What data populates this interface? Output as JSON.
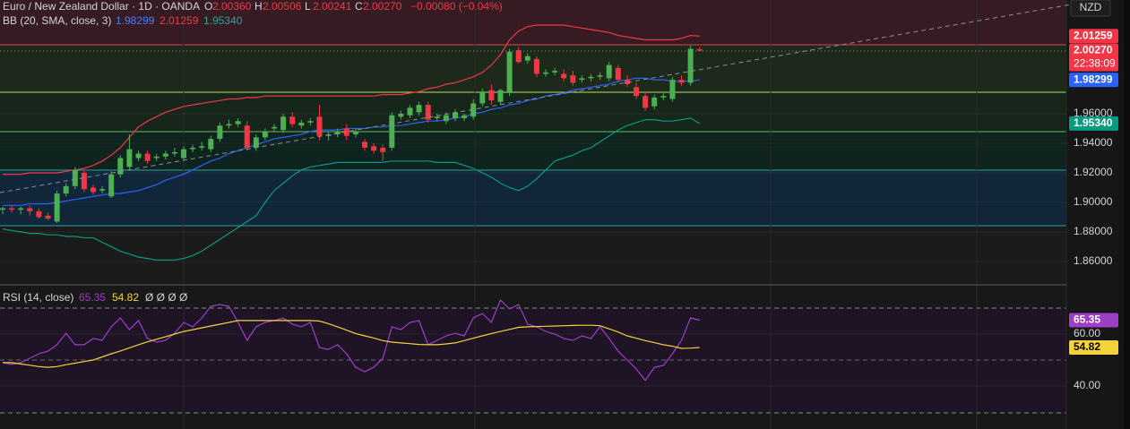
{
  "header": {
    "symbol": "Euro / New Zealand Dollar · 1D · OANDA",
    "ohlc": [
      {
        "key": "O",
        "value": "2.00360"
      },
      {
        "key": "H",
        "value": "2.00506"
      },
      {
        "key": "L",
        "value": "2.00241"
      },
      {
        "key": "C",
        "value": "2.00270"
      }
    ],
    "change": "−0.00080 (−0.04%)"
  },
  "bb_legend": {
    "name": "BB (20, SMA, close, 3)",
    "values": [
      "1.98299",
      "2.01259",
      "1.95340"
    ]
  },
  "rsi_legend": {
    "name": "RSI (14, close)",
    "values": [
      "65.35",
      "54.82"
    ],
    "extra": "Ø Ø Ø Ø"
  },
  "currency": "NZD",
  "chart_data": [
    {
      "type": "candlestick",
      "up_color": "#4caf50",
      "down_color": "#f23645",
      "open": [
        1.895,
        1.896,
        1.895,
        1.896,
        1.894,
        1.891,
        1.887,
        1.906,
        1.911,
        1.92,
        1.91,
        1.908,
        1.904,
        1.919,
        1.924,
        1.93,
        1.933,
        1.93,
        1.931,
        1.933,
        1.93,
        1.936,
        1.937,
        1.936,
        1.943,
        1.952,
        1.953,
        1.952,
        1.937,
        1.944,
        1.95,
        1.949,
        1.958,
        1.952,
        1.954,
        1.958,
        1.945,
        1.946,
        1.95,
        1.946,
        1.941,
        1.938,
        1.937,
        1.937,
        1.958,
        1.959,
        1.961,
        1.966,
        1.957,
        1.955,
        1.957,
        1.957,
        1.958,
        1.967,
        1.976,
        1.968,
        1.974,
        2.003,
        1.996,
        1.997,
        1.987,
        1.988,
        1.987,
        1.986,
        1.983,
        1.984,
        1.985,
        1.984,
        1.991,
        1.983,
        1.978,
        1.972,
        1.965,
        1.971,
        1.97,
        1.983,
        1.981,
        2.0036
      ],
      "high": [
        1.897,
        1.898,
        1.897,
        1.898,
        1.896,
        1.893,
        1.908,
        1.913,
        1.924,
        1.922,
        1.912,
        1.911,
        1.921,
        1.932,
        1.946,
        1.935,
        1.935,
        1.933,
        1.935,
        1.937,
        1.938,
        1.939,
        1.941,
        1.945,
        1.954,
        1.956,
        1.957,
        1.955,
        1.946,
        1.95,
        1.953,
        1.96,
        1.961,
        1.956,
        1.957,
        1.966,
        1.948,
        1.95,
        1.953,
        1.95,
        1.943,
        1.94,
        1.939,
        1.961,
        1.962,
        1.966,
        1.968,
        1.968,
        1.96,
        1.961,
        1.963,
        1.96,
        1.97,
        1.977,
        1.98,
        1.977,
        2.004,
        2.005,
        2.001,
        1.999,
        1.99,
        1.991,
        1.99,
        1.989,
        1.986,
        1.987,
        1.988,
        1.995,
        1.993,
        1.986,
        1.981,
        1.975,
        1.973,
        1.974,
        1.985,
        1.986,
        2.006,
        2.00506
      ],
      "low": [
        1.892,
        1.893,
        1.892,
        1.891,
        1.889,
        1.888,
        1.886,
        1.904,
        1.909,
        1.907,
        1.905,
        1.906,
        1.903,
        1.917,
        1.922,
        1.928,
        1.926,
        1.928,
        1.929,
        1.931,
        1.928,
        1.934,
        1.935,
        1.934,
        1.941,
        1.95,
        1.951,
        1.935,
        1.935,
        1.942,
        1.948,
        1.947,
        1.951,
        1.95,
        1.952,
        1.942,
        1.942,
        1.944,
        1.942,
        1.944,
        1.935,
        1.933,
        1.928,
        1.935,
        1.956,
        1.957,
        1.959,
        1.954,
        1.955,
        1.953,
        1.955,
        1.955,
        1.956,
        1.965,
        1.966,
        1.966,
        1.972,
        1.994,
        1.994,
        1.985,
        1.985,
        1.986,
        1.982,
        1.979,
        1.981,
        1.982,
        1.983,
        1.982,
        1.981,
        1.978,
        1.97,
        1.962,
        1.963,
        1.969,
        1.968,
        1.979,
        1.979,
        2.00241
      ],
      "close": [
        1.896,
        1.895,
        1.896,
        1.894,
        1.89,
        1.889,
        1.906,
        1.911,
        1.922,
        1.909,
        1.907,
        1.909,
        1.919,
        1.93,
        1.936,
        1.933,
        1.928,
        1.931,
        1.933,
        1.934,
        1.936,
        1.937,
        1.938,
        1.943,
        1.952,
        1.953,
        1.955,
        1.937,
        1.944,
        1.948,
        1.951,
        1.958,
        1.953,
        1.954,
        1.955,
        1.945,
        1.946,
        1.948,
        1.945,
        1.948,
        1.937,
        1.935,
        1.934,
        1.959,
        1.96,
        1.964,
        1.966,
        1.956,
        1.958,
        1.959,
        1.961,
        1.959,
        1.967,
        1.975,
        1.969,
        1.976,
        2.002,
        1.995,
        1.999,
        1.987,
        1.988,
        1.989,
        1.984,
        1.981,
        1.984,
        1.985,
        1.986,
        1.993,
        1.983,
        1.98,
        1.972,
        1.964,
        1.971,
        1.972,
        1.983,
        1.981,
        2.004,
        2.0027
      ],
      "series": [
        {
          "name": "Upper",
          "color": "#f23645",
          "values": [
            1.919,
            1.919,
            1.919,
            1.92,
            1.92,
            1.92,
            1.92,
            1.921,
            1.922,
            1.923,
            1.925,
            1.928,
            1.932,
            1.937,
            1.944,
            1.951,
            1.955,
            1.958,
            1.961,
            1.963,
            1.965,
            1.966,
            1.967,
            1.968,
            1.969,
            1.97,
            1.97,
            1.971,
            1.971,
            1.972,
            1.972,
            1.972,
            1.972,
            1.972,
            1.972,
            1.972,
            1.972,
            1.972,
            1.972,
            1.972,
            1.972,
            1.972,
            1.973,
            1.973,
            1.973,
            1.974,
            1.975,
            1.977,
            1.978,
            1.98,
            1.981,
            1.983,
            1.985,
            1.988,
            1.993,
            2.0,
            2.01,
            2.016,
            2.019,
            2.02,
            2.02,
            2.02,
            2.02,
            2.019,
            2.018,
            2.017,
            2.016,
            2.015,
            2.013,
            2.012,
            2.011,
            2.01,
            2.01,
            2.01,
            2.01,
            2.011,
            2.013,
            2.0126
          ]
        },
        {
          "name": "Basis",
          "color": "#2962ff",
          "values": [
            1.898,
            1.898,
            1.898,
            1.899,
            1.899,
            1.899,
            1.9,
            1.901,
            1.902,
            1.903,
            1.904,
            1.905,
            1.906,
            1.906,
            1.907,
            1.908,
            1.91,
            1.912,
            1.915,
            1.917,
            1.919,
            1.922,
            1.925,
            1.928,
            1.93,
            1.933,
            1.935,
            1.937,
            1.939,
            1.941,
            1.943,
            1.944,
            1.945,
            1.946,
            1.948,
            1.949,
            1.949,
            1.949,
            1.95,
            1.95,
            1.95,
            1.951,
            1.951,
            1.952,
            1.952,
            1.953,
            1.954,
            1.955,
            1.955,
            1.956,
            1.957,
            1.958,
            1.96,
            1.961,
            1.963,
            1.964,
            1.966,
            1.967,
            1.969,
            1.97,
            1.972,
            1.973,
            1.974,
            1.976,
            1.977,
            1.978,
            1.979,
            1.98,
            1.982,
            1.983,
            1.984,
            1.984,
            1.983,
            1.983,
            1.982,
            1.982,
            1.982,
            1.983
          ]
        },
        {
          "name": "Lower",
          "color": "#089981",
          "values": [
            1.882,
            1.881,
            1.88,
            1.879,
            1.879,
            1.878,
            1.878,
            1.877,
            1.877,
            1.876,
            1.876,
            1.873,
            1.87,
            1.867,
            1.865,
            1.863,
            1.862,
            1.861,
            1.861,
            1.861,
            1.862,
            1.864,
            1.867,
            1.871,
            1.875,
            1.879,
            1.883,
            1.887,
            1.891,
            1.9,
            1.908,
            1.913,
            1.918,
            1.922,
            1.924,
            1.925,
            1.926,
            1.927,
            1.927,
            1.927,
            1.927,
            1.927,
            1.927,
            1.928,
            1.928,
            1.928,
            1.928,
            1.928,
            1.927,
            1.927,
            1.927,
            1.925,
            1.923,
            1.92,
            1.917,
            1.913,
            1.91,
            1.908,
            1.911,
            1.916,
            1.922,
            1.928,
            1.93,
            1.932,
            1.935,
            1.937,
            1.941,
            1.945,
            1.949,
            1.952,
            1.954,
            1.956,
            1.956,
            1.955,
            1.955,
            1.956,
            1.957,
            1.9534
          ]
        }
      ],
      "ylim": [
        1.8448,
        2.037
      ],
      "yticks": [
        {
          "value": 1.86,
          "label": "1.86000"
        },
        {
          "value": 1.88,
          "label": "1.88000"
        },
        {
          "value": 1.9,
          "label": "1.90000"
        },
        {
          "value": 1.92,
          "label": "1.92000"
        },
        {
          "value": 1.94,
          "label": "1.94000"
        },
        {
          "value": 1.96,
          "label": "1.96000"
        }
      ],
      "price_labels": [
        {
          "value": 2.01259,
          "label": "2.01259",
          "color": "#f23645"
        },
        {
          "value": 2.0027,
          "label": "2.00270",
          "sub": "22:38:09",
          "color": "#f23645"
        },
        {
          "value": 1.98299,
          "label": "1.98299",
          "color": "#2962ff"
        },
        {
          "value": 1.9534,
          "label": "1.95340",
          "color": "#089981"
        }
      ]
    },
    {
      "type": "line",
      "series": [
        {
          "name": "RSI",
          "color": "#9c3fc4",
          "values": [
            49.0,
            48.3,
            49.0,
            50.7,
            52.4,
            53.4,
            55.9,
            60.3,
            55.9,
            55.9,
            58.3,
            57.6,
            62.8,
            66.2,
            61.7,
            65.2,
            58.3,
            56.9,
            57.6,
            60.3,
            64.5,
            62.8,
            66.2,
            70.7,
            71.4,
            70.7,
            64.5,
            57.6,
            62.8,
            64.5,
            65.2,
            66.2,
            63.8,
            62.8,
            64.5,
            54.8,
            54.1,
            55.9,
            52.4,
            47.2,
            45.5,
            47.2,
            50.7,
            62.8,
            61.7,
            64.5,
            65.2,
            55.9,
            57.6,
            59.3,
            60.3,
            59.3,
            66.2,
            67.9,
            64.5,
            73.1,
            69.7,
            71.4,
            63.8,
            62.8,
            61.0,
            60.0,
            58.3,
            57.6,
            59.3,
            58.3,
            62.8,
            58.3,
            53.4,
            50.0,
            46.6,
            42.1,
            47.2,
            47.9,
            52.4,
            57.6,
            66.2,
            65.35
          ]
        },
        {
          "name": "RSI-based MA",
          "color": "#f5d33a",
          "values": [
            49.0,
            49.0,
            48.5,
            48.0,
            47.5,
            47.2,
            47.5,
            48.2,
            48.8,
            49.4,
            50.0,
            51.2,
            52.4,
            53.5,
            54.7,
            55.9,
            57.0,
            58.0,
            59.0,
            60.0,
            61.0,
            61.7,
            62.4,
            63.1,
            63.8,
            64.5,
            65.2,
            65.2,
            65.2,
            65.2,
            65.2,
            65.2,
            65.2,
            65.2,
            65.2,
            65.0,
            64.0,
            62.8,
            61.5,
            60.2,
            59.3,
            58.5,
            57.5,
            56.9,
            56.6,
            56.3,
            56.0,
            55.9,
            55.9,
            56.2,
            56.6,
            57.5,
            58.4,
            59.3,
            60.2,
            61.0,
            61.8,
            62.6,
            62.8,
            62.9,
            63.0,
            63.1,
            63.2,
            63.3,
            63.4,
            63.4,
            63.2,
            62.0,
            60.8,
            59.3,
            58.4,
            57.5,
            56.7,
            55.9,
            55.3,
            54.5,
            54.6,
            54.82
          ]
        }
      ],
      "ylim": [
        23.45,
        78.28
      ],
      "yticks": [
        {
          "value": 40,
          "label": "40.00"
        },
        {
          "value": 60,
          "label": "60.00"
        }
      ],
      "price_labels": [
        {
          "value": 65.35,
          "label": "65.35",
          "color": "#9c3fc4"
        },
        {
          "value": 54.82,
          "label": "54.82",
          "color": "#f5d33a"
        }
      ]
    }
  ]
}
